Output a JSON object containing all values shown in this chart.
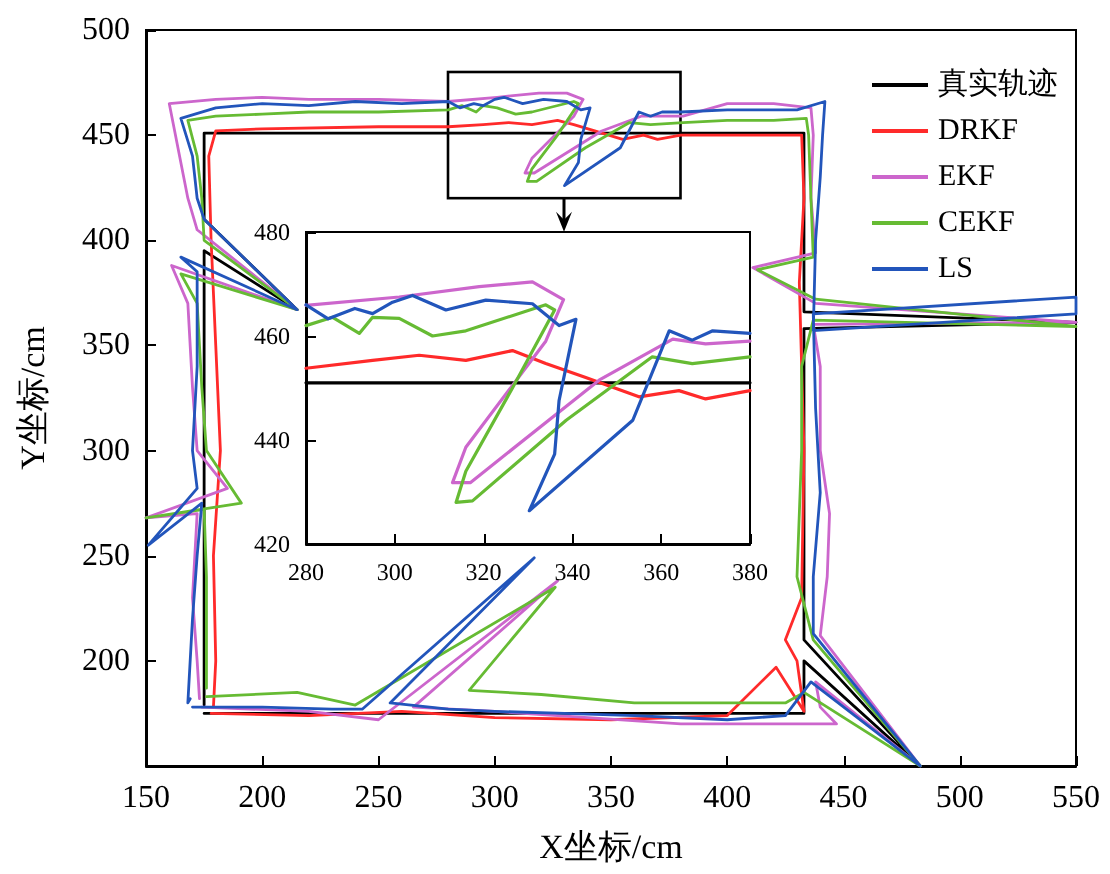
{
  "chart_data": [
    {
      "type": "line",
      "xlabel": "X坐标/cm",
      "ylabel": "Y坐标/cm",
      "xlim": [
        150,
        550
      ],
      "ylim": [
        150,
        500
      ],
      "xticks": [
        150,
        200,
        250,
        300,
        350,
        400,
        450,
        500,
        550
      ],
      "yticks": [
        200,
        250,
        300,
        350,
        400,
        450,
        500
      ],
      "legend": "top right",
      "series": [
        {
          "name": "真实轨迹",
          "color": "#000000",
          "x": [
            175,
            433,
            433,
            483,
            433,
            433,
            550,
            433,
            433,
            175,
            175,
            215,
            175,
            175
          ],
          "values": [
            175,
            175,
            200,
            150,
            210,
            358,
            361,
            366,
            451,
            451,
            410,
            367,
            395,
            179
          ]
        },
        {
          "name": "DRKF",
          "color": "#ff2a2a",
          "x": [
            178,
            220,
            260,
            300,
            350,
            400,
            421,
            433,
            430,
            425,
            432,
            433,
            431,
            433,
            432,
            400,
            380,
            370,
            364,
            355,
            343,
            334,
            327,
            316,
            306,
            295,
            280,
            250,
            200,
            180,
            177,
            178,
            180,
            182,
            179,
            180,
            179
          ],
          "values": [
            175,
            174,
            176,
            173,
            172,
            174,
            197,
            176,
            200,
            210,
            230,
            300,
            380,
            420,
            450,
            450,
            450,
            448,
            450,
            448,
            452,
            455,
            457,
            455,
            456,
            455,
            454,
            454,
            453,
            452,
            440,
            400,
            350,
            300,
            250,
            200,
            178
          ]
        },
        {
          "name": "EKF",
          "color": "#cc66cc",
          "x": [
            174,
            220,
            250,
            327,
            265,
            300,
            340,
            380,
            420,
            447,
            440,
            438,
            483,
            440,
            443,
            444,
            440,
            440,
            437,
            550,
            438,
            411,
            438,
            436,
            437,
            436,
            420,
            400,
            381,
            370,
            363,
            346,
            317,
            313,
            316,
            334,
            338,
            331,
            319,
            301,
            280,
            250,
            220,
            200,
            180,
            160,
            168,
            172,
            215,
            161,
            168,
            170,
            172,
            185,
            150,
            172,
            170,
            172,
            173
          ],
          "values": [
            178,
            176,
            172,
            238,
            178,
            176,
            173,
            170,
            170,
            170,
            178,
            190,
            150,
            212,
            240,
            270,
            300,
            340,
            360,
            361,
            370,
            387,
            394,
            420,
            450,
            463,
            465,
            465,
            459,
            459,
            459,
            452,
            432,
            432,
            439,
            459,
            467,
            470,
            470,
            468,
            466,
            467,
            467,
            468,
            467,
            465,
            420,
            405,
            367,
            388,
            370,
            330,
            300,
            282,
            268,
            270,
            230,
            200,
            182
          ]
        },
        {
          "name": "CEKF",
          "color": "#66bb33",
          "x": [
            176,
            215,
            240,
            326,
            289,
            320,
            360,
            400,
            425,
            433,
            483,
            437,
            430,
            432,
            432,
            437,
            550,
            438,
            413,
            437,
            436,
            435,
            434,
            420,
            400,
            381,
            367,
            358,
            339,
            318,
            314,
            316,
            327,
            336,
            334,
            316,
            309,
            301,
            295,
            292,
            286,
            280,
            250,
            220,
            200,
            180,
            168,
            172,
            174,
            175,
            215,
            165,
            172,
            174,
            176,
            191,
            150,
            175,
            176,
            176,
            176
          ],
          "values": [
            183,
            185,
            179,
            235,
            186,
            184,
            180,
            180,
            180,
            185,
            150,
            210,
            240,
            300,
            340,
            362,
            359,
            372,
            386,
            392,
            420,
            450,
            458,
            457,
            457,
            456,
            455,
            456,
            444,
            428,
            428,
            434,
            450,
            465,
            466,
            461,
            460,
            463,
            464,
            461,
            464,
            462,
            461,
            461,
            460,
            459,
            457,
            440,
            420,
            400,
            367,
            384,
            370,
            330,
            300,
            275,
            268,
            272,
            240,
            200,
            187
          ]
        },
        {
          "name": "LS",
          "color": "#2255bb",
          "x": [
            170,
            200,
            230,
            243,
            317,
            255,
            280,
            300,
            330,
            360,
            400,
            425,
            436,
            483,
            437,
            437,
            440,
            438,
            437,
            550,
            550,
            437,
            438,
            440,
            441,
            442,
            430,
            400,
            380,
            372,
            367,
            362,
            354,
            330,
            336,
            337,
            341,
            337,
            331,
            321,
            312,
            304,
            300,
            295,
            291,
            285,
            280,
            260,
            240,
            220,
            200,
            180,
            165,
            170,
            172,
            175,
            215,
            165,
            172,
            172,
            170,
            172,
            151,
            174,
            172,
            170,
            168,
            169
          ],
          "values": [
            178,
            178,
            177,
            177,
            249,
            180,
            177,
            176,
            175,
            174,
            172,
            174,
            190,
            150,
            213,
            240,
            280,
            320,
            365,
            373,
            365,
            357,
            400,
            430,
            450,
            466,
            462,
            462,
            461,
            461,
            459,
            461,
            444,
            426,
            437,
            448,
            463,
            462,
            466,
            467,
            465,
            468,
            467,
            464,
            465,
            463,
            466,
            465,
            466,
            464,
            465,
            463,
            458,
            440,
            420,
            410,
            367,
            392,
            385,
            340,
            300,
            282,
            255,
            275,
            250,
            220,
            180,
            182
          ]
        }
      ]
    },
    {
      "type": "line",
      "xlim": [
        280,
        380
      ],
      "ylim": [
        420,
        480
      ],
      "xticks": [
        280,
        300,
        320,
        340,
        360,
        380
      ],
      "yticks": [
        420,
        440,
        460,
        480
      ],
      "series": [
        {
          "color": "#000000",
          "x": [
            280,
            380
          ],
          "values": [
            451,
            451
          ]
        },
        {
          "color": "#ff2a2a",
          "x": [
            280,
            295,
            305.5,
            316,
            326.5,
            334,
            343,
            355,
            364,
            370,
            380
          ],
          "values": [
            453.8,
            455.3,
            456.3,
            455.3,
            457.2,
            454.7,
            452,
            448.3,
            449.5,
            447.9,
            449.5
          ]
        },
        {
          "color": "#cc66cc",
          "x": [
            280,
            301,
            319,
            331,
            338,
            334,
            316,
            313,
            317,
            346,
            362.6,
            370,
            380
          ],
          "values": [
            465.9,
            467.5,
            469.5,
            470.4,
            467,
            459,
            438.6,
            431.8,
            431.8,
            451.5,
            459.4,
            458.5,
            459
          ]
        },
        {
          "color": "#66bb33",
          "x": [
            280,
            286,
            292,
            295,
            301,
            308.5,
            316,
            334,
            336,
            326.5,
            316,
            313.8,
            317.5,
            338.6,
            358,
            367,
            380
          ],
          "values": [
            462,
            463.6,
            460.5,
            463.6,
            463.4,
            460,
            461,
            466,
            465,
            450,
            434,
            428,
            428.3,
            443.8,
            456,
            454.7,
            456
          ]
        },
        {
          "color": "#2255bb",
          "x": [
            280,
            285,
            291,
            295,
            299.5,
            304,
            311.5,
            320.5,
            331,
            337,
            340.8,
            337,
            336,
            330.3,
            353.6,
            361.8,
            367,
            371.6,
            380
          ],
          "values": [
            466,
            463.3,
            465.3,
            464.3,
            466.5,
            467.8,
            465,
            466.9,
            466.2,
            462,
            463.2,
            447.6,
            437.3,
            426.4,
            443.8,
            461,
            459.2,
            461,
            460.5
          ]
        }
      ]
    }
  ]
}
